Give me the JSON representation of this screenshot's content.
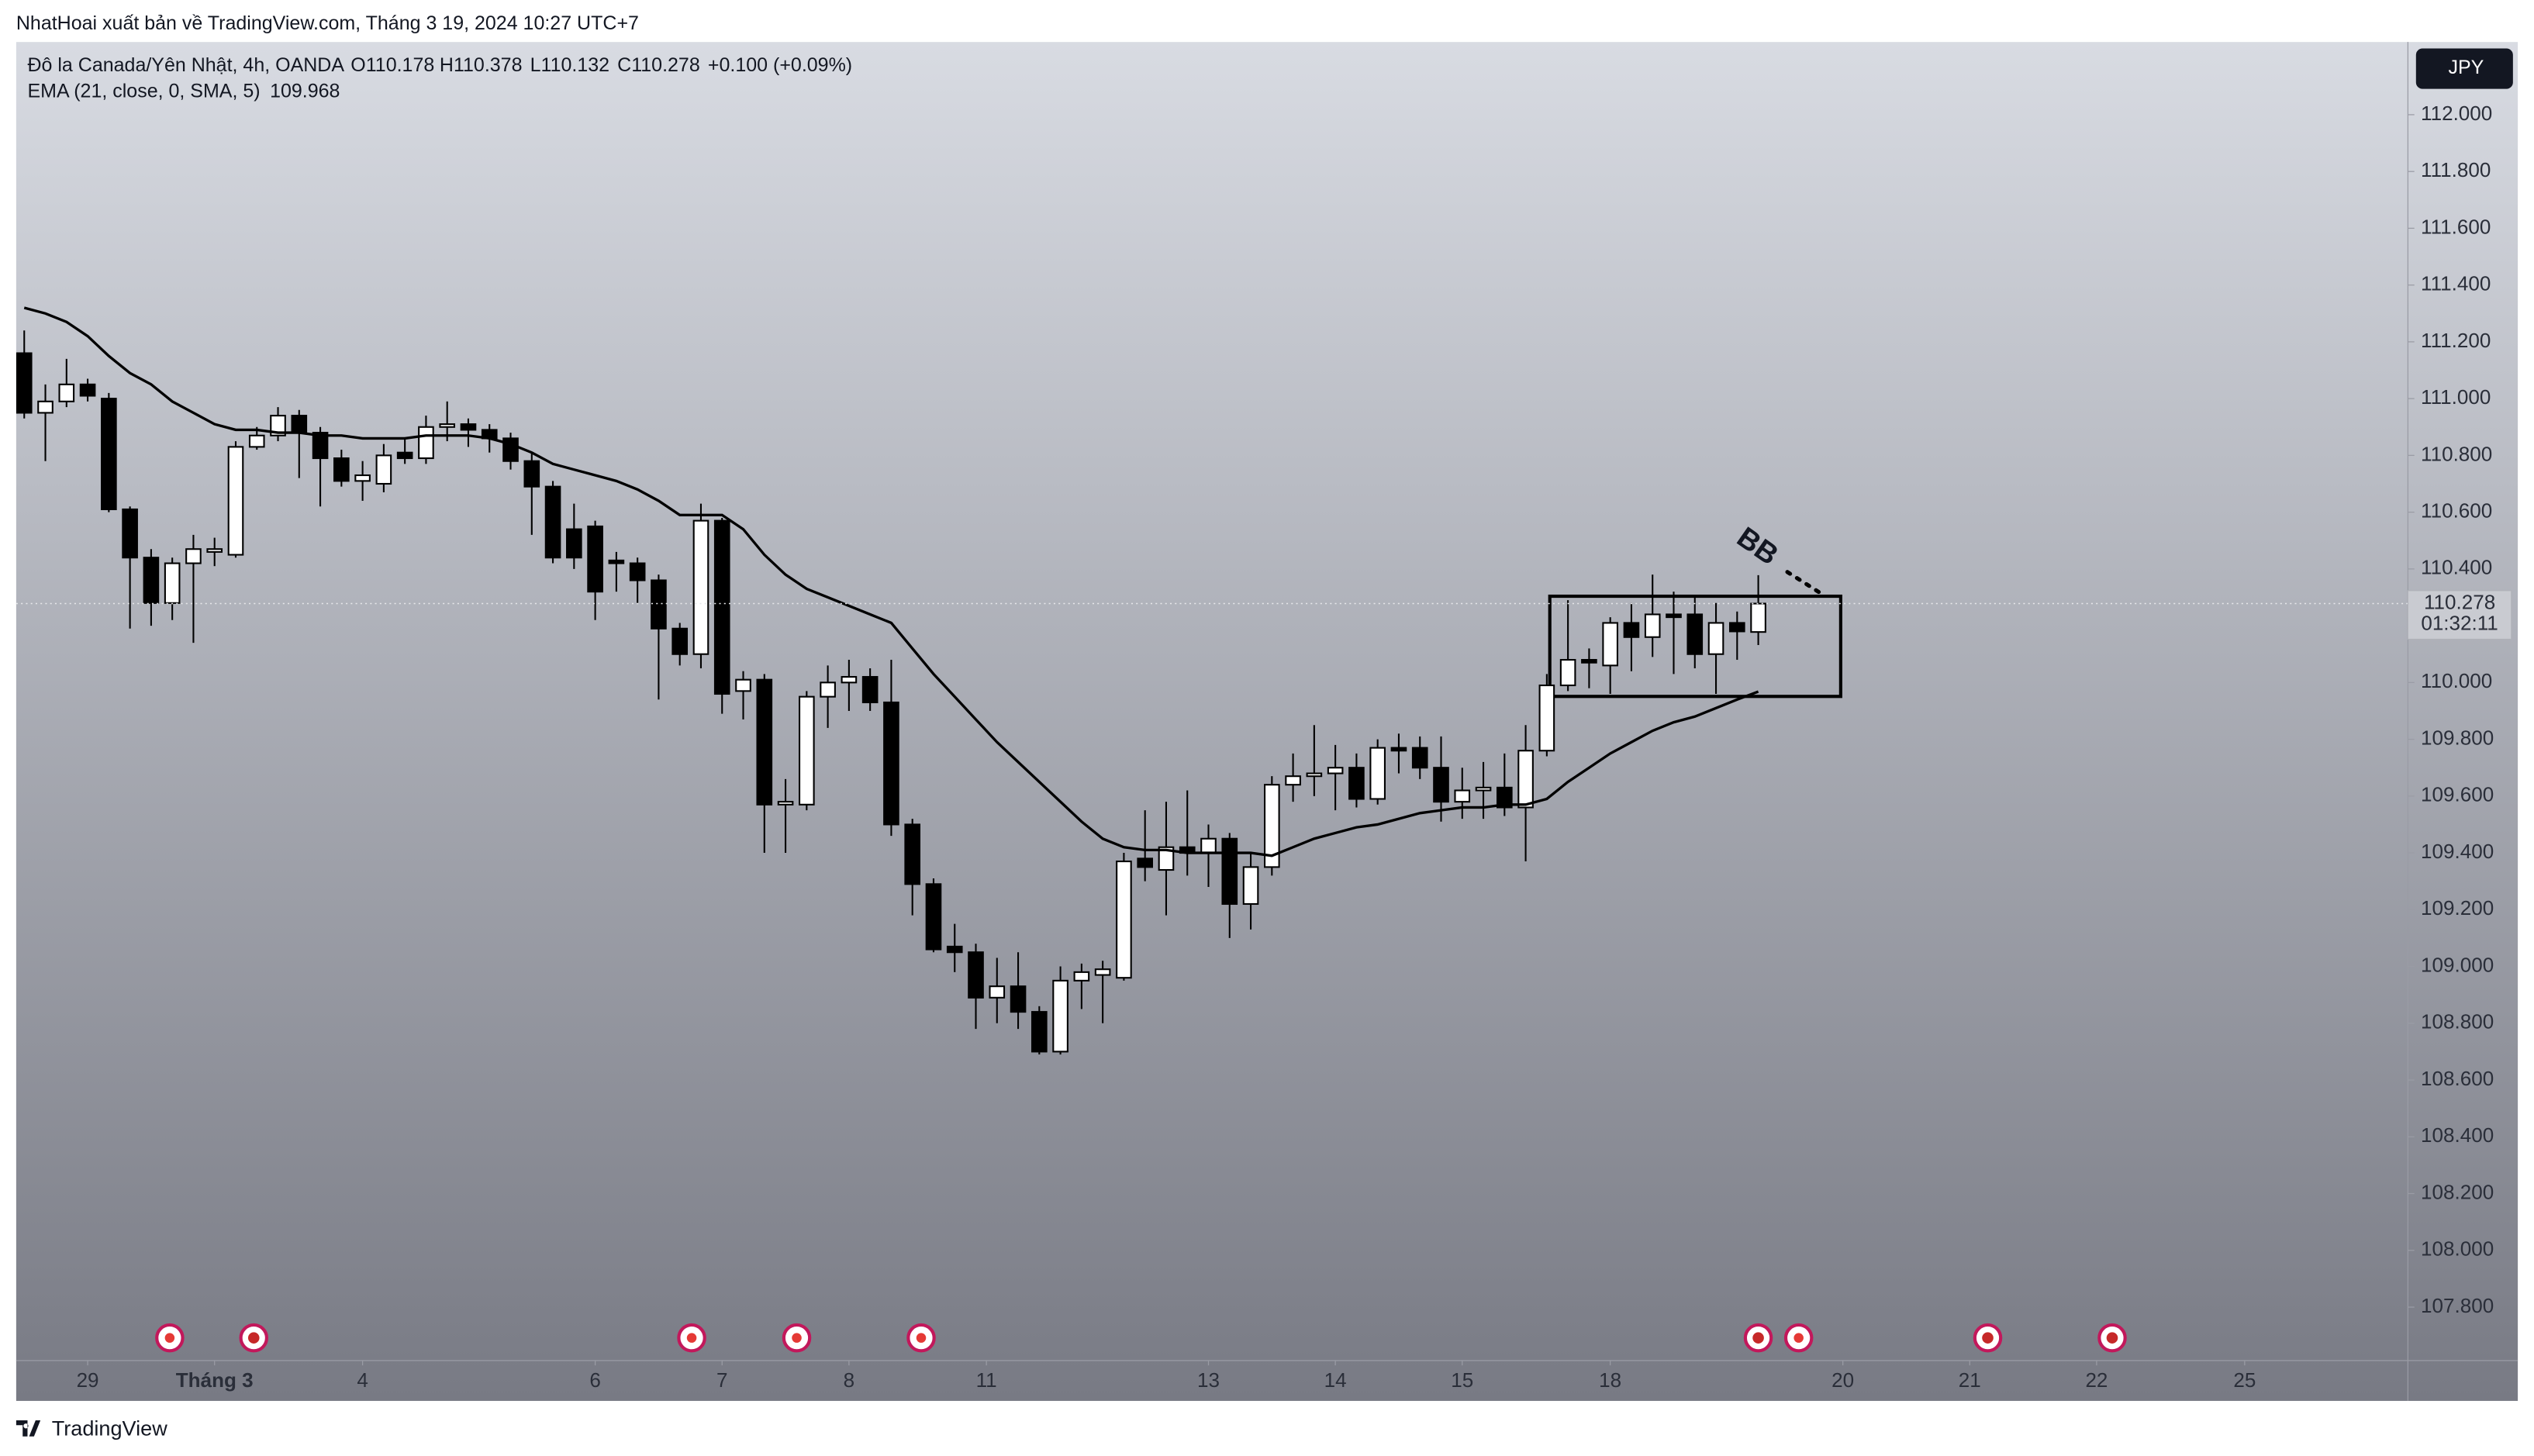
{
  "credit": "NhatHoai xuất bản về TradingView.com, Tháng 3 19, 2024 10:27 UTC+7",
  "logo": "TradingView",
  "chart_data": {
    "type": "candlestick",
    "legend": {
      "symbol": "Đô la Canada/Yên Nhật, 4h, OANDA",
      "open": "O110.178",
      "high": "H110.378",
      "low": "L110.132",
      "close": "C110.278",
      "change": "+0.100 (+0.09%)"
    },
    "currency": "JPY",
    "last_price_label": "110.278",
    "countdown": "01:32:11",
    "annotation": "BB",
    "up_color": "#ffffff",
    "down_color": "#000000",
    "open": [
      111.16,
      110.95,
      110.99,
      111.05,
      111.0,
      110.61,
      110.44,
      110.28,
      110.42,
      110.46,
      110.45,
      110.83,
      110.87,
      110.94,
      110.88,
      110.79,
      110.71,
      110.7,
      110.81,
      110.79,
      110.9,
      110.91,
      110.89,
      110.86,
      110.78,
      110.69,
      110.54,
      110.55,
      110.43,
      110.42,
      110.36,
      110.19,
      110.1,
      110.57,
      109.97,
      110.01,
      109.57,
      109.57,
      109.95,
      110.0,
      110.02,
      109.93,
      109.5,
      109.29,
      109.07,
      109.05,
      108.89,
      108.93,
      108.84,
      108.7,
      108.95,
      108.97,
      108.96,
      109.38,
      109.34,
      109.42,
      109.4,
      109.45,
      109.22,
      109.35,
      109.64,
      109.67,
      109.68,
      109.7,
      109.59,
      109.77,
      109.77,
      109.7,
      109.58,
      109.62,
      109.63,
      109.56,
      109.76,
      109.99,
      110.08,
      110.06,
      110.21,
      110.16,
      110.24,
      110.24,
      110.1,
      110.21,
      110.178
    ],
    "high": [
      111.24,
      111.05,
      111.14,
      111.07,
      111.02,
      110.62,
      110.47,
      110.44,
      110.52,
      110.51,
      110.85,
      110.9,
      110.97,
      110.96,
      110.9,
      110.82,
      110.78,
      110.84,
      110.86,
      110.94,
      110.99,
      110.93,
      110.91,
      110.88,
      110.81,
      110.71,
      110.63,
      110.57,
      110.46,
      110.44,
      110.38,
      110.21,
      110.63,
      110.58,
      110.04,
      110.03,
      109.66,
      109.97,
      110.06,
      110.08,
      110.05,
      110.08,
      109.52,
      109.31,
      109.15,
      109.08,
      109.03,
      109.05,
      108.86,
      109.0,
      109.01,
      109.02,
      109.4,
      109.55,
      109.58,
      109.62,
      109.5,
      109.47,
      109.4,
      109.67,
      109.75,
      109.85,
      109.78,
      109.75,
      109.8,
      109.82,
      109.81,
      109.81,
      109.7,
      109.72,
      109.75,
      109.85,
      110.03,
      110.29,
      110.12,
      110.23,
      110.28,
      110.38,
      110.32,
      110.3,
      110.28,
      110.25,
      110.378
    ],
    "low": [
      110.93,
      110.78,
      110.97,
      110.99,
      110.6,
      110.19,
      110.2,
      110.22,
      110.14,
      110.41,
      110.44,
      110.82,
      110.85,
      110.72,
      110.62,
      110.69,
      110.64,
      110.67,
      110.77,
      110.77,
      110.85,
      110.83,
      110.81,
      110.75,
      110.52,
      110.42,
      110.4,
      110.22,
      110.32,
      110.28,
      109.94,
      110.06,
      110.05,
      109.89,
      109.87,
      109.4,
      109.4,
      109.55,
      109.84,
      109.9,
      109.9,
      109.46,
      109.18,
      109.05,
      108.98,
      108.78,
      108.8,
      108.78,
      108.69,
      108.69,
      108.85,
      108.8,
      108.95,
      109.3,
      109.18,
      109.32,
      109.28,
      109.1,
      109.13,
      109.32,
      109.58,
      109.6,
      109.55,
      109.56,
      109.57,
      109.68,
      109.66,
      109.51,
      109.52,
      109.52,
      109.53,
      109.37,
      109.74,
      109.97,
      109.98,
      109.96,
      110.04,
      110.09,
      110.03,
      110.05,
      109.96,
      110.08,
      110.132
    ],
    "close": [
      110.95,
      110.99,
      111.05,
      111.01,
      110.61,
      110.44,
      110.28,
      110.42,
      110.47,
      110.47,
      110.83,
      110.87,
      110.94,
      110.88,
      110.79,
      110.71,
      110.73,
      110.8,
      110.79,
      110.9,
      110.91,
      110.89,
      110.86,
      110.78,
      110.69,
      110.44,
      110.44,
      110.32,
      110.42,
      110.36,
      110.19,
      110.1,
      110.57,
      109.96,
      110.01,
      109.57,
      109.58,
      109.95,
      110.0,
      110.02,
      109.93,
      109.5,
      109.29,
      109.06,
      109.05,
      108.89,
      108.93,
      108.84,
      108.7,
      108.95,
      108.98,
      108.99,
      109.37,
      109.35,
      109.42,
      109.4,
      109.45,
      109.22,
      109.35,
      109.64,
      109.67,
      109.68,
      109.7,
      109.59,
      109.77,
      109.76,
      109.7,
      109.58,
      109.62,
      109.63,
      109.56,
      109.76,
      109.99,
      110.08,
      110.07,
      110.21,
      110.16,
      110.24,
      110.23,
      110.1,
      110.21,
      110.18,
      110.278
    ],
    "ema": {
      "name": "EMA (21, close, 0, SMA, 5)",
      "value_label": "109.968",
      "color": "#000000",
      "values": [
        111.32,
        111.3,
        111.27,
        111.22,
        111.15,
        111.09,
        111.05,
        110.99,
        110.95,
        110.91,
        110.89,
        110.89,
        110.88,
        110.88,
        110.87,
        110.87,
        110.86,
        110.86,
        110.86,
        110.87,
        110.87,
        110.87,
        110.86,
        110.84,
        110.81,
        110.77,
        110.75,
        110.73,
        110.71,
        110.68,
        110.64,
        110.59,
        110.59,
        110.59,
        110.54,
        110.45,
        110.38,
        110.33,
        110.3,
        110.27,
        110.24,
        110.21,
        110.12,
        110.03,
        109.95,
        109.87,
        109.79,
        109.72,
        109.65,
        109.58,
        109.51,
        109.45,
        109.42,
        109.41,
        109.41,
        109.4,
        109.4,
        109.4,
        109.4,
        109.39,
        109.42,
        109.45,
        109.47,
        109.49,
        109.5,
        109.52,
        109.54,
        109.55,
        109.56,
        109.56,
        109.57,
        109.57,
        109.59,
        109.65,
        109.7,
        109.75,
        109.79,
        109.83,
        109.86,
        109.88,
        109.91,
        109.94,
        109.968
      ]
    },
    "xlim": [
      -0.38,
      112.72
    ],
    "xticks": [
      {
        "value": 3,
        "label": "29"
      },
      {
        "value": 9,
        "label": "Tháng 3"
      },
      {
        "value": 16,
        "label": "4"
      },
      {
        "value": 27,
        "label": "6"
      },
      {
        "value": 33,
        "label": "7"
      },
      {
        "value": 39,
        "label": "8"
      },
      {
        "value": 45.5,
        "label": "11"
      },
      {
        "value": 56,
        "label": "13"
      },
      {
        "value": 62,
        "label": "14"
      },
      {
        "value": 68,
        "label": "15"
      },
      {
        "value": 75,
        "label": "18"
      },
      {
        "value": 86,
        "label": "20"
      },
      {
        "value": 92,
        "label": "21"
      },
      {
        "value": 98,
        "label": "22"
      },
      {
        "value": 105,
        "label": "25"
      }
    ],
    "ylim": [
      107.612,
      112.256
    ],
    "yticks": [
      {
        "value": 107.8,
        "label": "107.800"
      },
      {
        "value": 108,
        "label": "108.000"
      },
      {
        "value": 108.2,
        "label": "108.200"
      },
      {
        "value": 108.4,
        "label": "108.400"
      },
      {
        "value": 108.6,
        "label": "108.600"
      },
      {
        "value": 108.8,
        "label": "108.800"
      },
      {
        "value": 109,
        "label": "109.000"
      },
      {
        "value": 109.2,
        "label": "109.200"
      },
      {
        "value": 109.4,
        "label": "109.400"
      },
      {
        "value": 109.6,
        "label": "109.600"
      },
      {
        "value": 109.8,
        "label": "109.800"
      },
      {
        "value": 110,
        "label": "110.000"
      },
      {
        "value": 110.2,
        "label": "110.200"
      },
      {
        "value": 110.4,
        "label": "110.400"
      },
      {
        "value": 110.6,
        "label": "110.600"
      },
      {
        "value": 110.8,
        "label": "110.800"
      },
      {
        "value": 111,
        "label": "111.000"
      },
      {
        "value": 111.2,
        "label": "111.200"
      },
      {
        "value": 111.4,
        "label": "111.400"
      },
      {
        "value": 111.6,
        "label": "111.600"
      },
      {
        "value": 111.8,
        "label": "111.800"
      },
      {
        "value": 112,
        "label": "112.000"
      }
    ],
    "grid": false
  }
}
